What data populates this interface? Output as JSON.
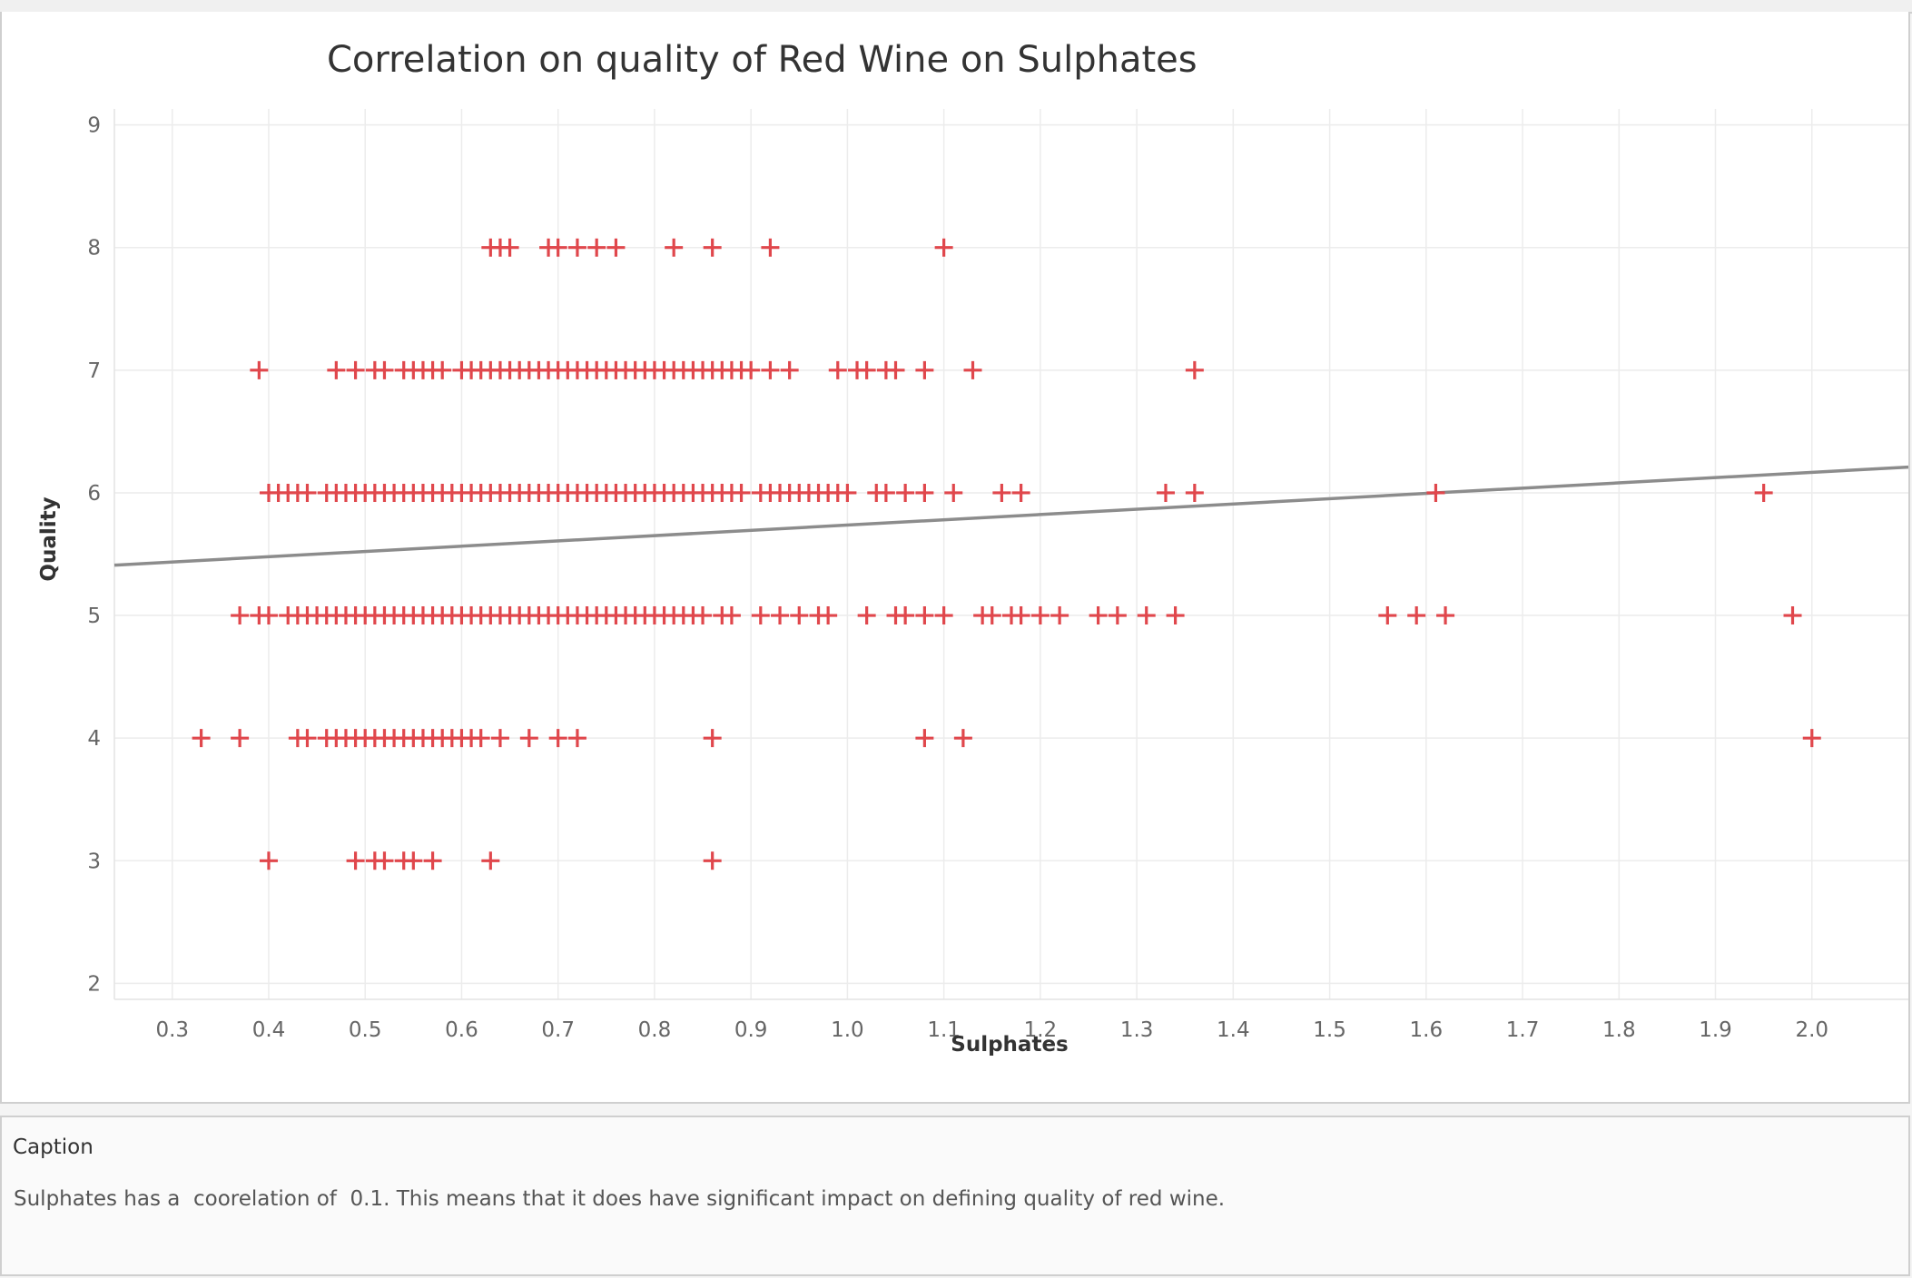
{
  "chart_data": {
    "type": "scatter",
    "title": "Correlation on quality of Red Wine on Sulphates",
    "xlabel": "Sulphates",
    "ylabel": "Quality",
    "xlim": [
      0.24,
      2.1
    ],
    "ylim": [
      1.87,
      9.13
    ],
    "xticks": [
      "0.3",
      "0.4",
      "0.5",
      "0.6",
      "0.7",
      "0.8",
      "0.9",
      "1.0",
      "1.1",
      "1.2",
      "1.3",
      "1.4",
      "1.5",
      "1.6",
      "1.7",
      "1.8",
      "1.9",
      "2.0"
    ],
    "xtick_values": [
      0.3,
      0.4,
      0.5,
      0.6,
      0.7,
      0.8,
      0.9,
      1.0,
      1.1,
      1.2,
      1.3,
      1.4,
      1.5,
      1.6,
      1.7,
      1.8,
      1.9,
      2.0
    ],
    "yticks": [
      "2",
      "3",
      "4",
      "5",
      "6",
      "7",
      "8",
      "9"
    ],
    "ytick_values": [
      2,
      3,
      4,
      5,
      6,
      7,
      8,
      9
    ],
    "grid": true,
    "marker": "plus",
    "marker_color": "#e0474c",
    "trend_color": "#8c8c8c",
    "trend_line": {
      "x": [
        0.24,
        2.1
      ],
      "y": [
        5.41,
        6.21
      ]
    },
    "points_by_quality": [
      {
        "quality": 8,
        "x": [
          0.63,
          0.64,
          0.65,
          0.69,
          0.7,
          0.72,
          0.74,
          0.76,
          0.82,
          0.86,
          0.92,
          1.1
        ]
      },
      {
        "quality": 7,
        "x": [
          0.39,
          0.47,
          0.49,
          0.51,
          0.52,
          0.54,
          0.55,
          0.56,
          0.57,
          0.58,
          0.6,
          0.61,
          0.62,
          0.63,
          0.64,
          0.65,
          0.66,
          0.67,
          0.68,
          0.69,
          0.7,
          0.71,
          0.72,
          0.73,
          0.74,
          0.75,
          0.76,
          0.77,
          0.78,
          0.79,
          0.8,
          0.81,
          0.82,
          0.83,
          0.84,
          0.85,
          0.86,
          0.87,
          0.88,
          0.89,
          0.9,
          0.92,
          0.94,
          0.99,
          1.01,
          1.02,
          1.04,
          1.05,
          1.08,
          1.13,
          1.36
        ]
      },
      {
        "quality": 6,
        "x": [
          0.4,
          0.41,
          0.42,
          0.43,
          0.44,
          0.46,
          0.47,
          0.48,
          0.49,
          0.5,
          0.51,
          0.52,
          0.53,
          0.54,
          0.55,
          0.56,
          0.57,
          0.58,
          0.59,
          0.6,
          0.61,
          0.62,
          0.63,
          0.64,
          0.65,
          0.66,
          0.67,
          0.68,
          0.69,
          0.7,
          0.71,
          0.72,
          0.73,
          0.74,
          0.75,
          0.76,
          0.77,
          0.78,
          0.79,
          0.8,
          0.81,
          0.82,
          0.83,
          0.84,
          0.85,
          0.86,
          0.87,
          0.88,
          0.89,
          0.91,
          0.92,
          0.93,
          0.94,
          0.95,
          0.96,
          0.97,
          0.98,
          0.99,
          1.0,
          1.03,
          1.04,
          1.06,
          1.08,
          1.11,
          1.16,
          1.18,
          1.33,
          1.36,
          1.61,
          1.95
        ]
      },
      {
        "quality": 5,
        "x": [
          0.37,
          0.39,
          0.4,
          0.42,
          0.43,
          0.44,
          0.45,
          0.46,
          0.47,
          0.48,
          0.49,
          0.5,
          0.51,
          0.52,
          0.53,
          0.54,
          0.55,
          0.56,
          0.57,
          0.58,
          0.59,
          0.6,
          0.61,
          0.62,
          0.63,
          0.64,
          0.65,
          0.66,
          0.67,
          0.68,
          0.69,
          0.7,
          0.71,
          0.72,
          0.73,
          0.74,
          0.75,
          0.76,
          0.77,
          0.78,
          0.79,
          0.8,
          0.81,
          0.82,
          0.83,
          0.84,
          0.85,
          0.87,
          0.88,
          0.91,
          0.93,
          0.95,
          0.97,
          0.98,
          1.02,
          1.05,
          1.06,
          1.08,
          1.1,
          1.14,
          1.15,
          1.17,
          1.18,
          1.2,
          1.22,
          1.26,
          1.28,
          1.31,
          1.34,
          1.56,
          1.59,
          1.62,
          1.98
        ]
      },
      {
        "quality": 4,
        "x": [
          0.33,
          0.37,
          0.43,
          0.44,
          0.46,
          0.47,
          0.48,
          0.49,
          0.5,
          0.51,
          0.52,
          0.53,
          0.54,
          0.55,
          0.56,
          0.57,
          0.58,
          0.59,
          0.6,
          0.61,
          0.62,
          0.64,
          0.67,
          0.7,
          0.72,
          0.86,
          1.08,
          1.12,
          2.0
        ]
      },
      {
        "quality": 3,
        "x": [
          0.4,
          0.49,
          0.51,
          0.52,
          0.54,
          0.55,
          0.57,
          0.63,
          0.86
        ]
      }
    ]
  },
  "caption": {
    "title": "Caption",
    "text": "Sulphates has a  coorelation of  0.1. This means that it does have significant impact on defining quality of red wine."
  }
}
